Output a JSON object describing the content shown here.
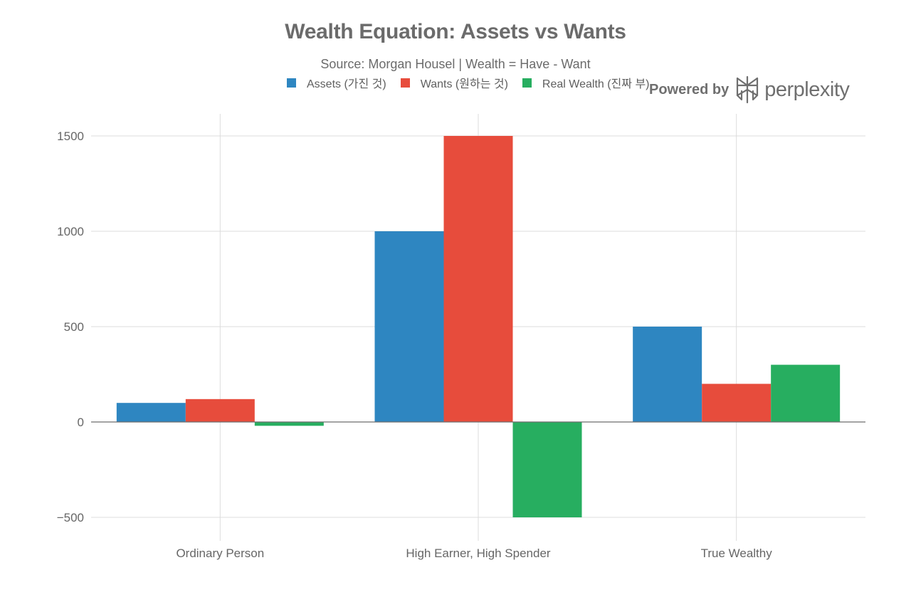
{
  "chart_data": {
    "type": "bar",
    "title": "Wealth Equation: Assets vs Wants",
    "subtitle": "Source: Morgan Housel | Wealth = Have - Want",
    "categories": [
      "Ordinary Person",
      "High Earner, High Spender",
      "True Wealthy"
    ],
    "series": [
      {
        "name": "Assets (가진 것)",
        "color": "#2e86c1",
        "values": [
          100,
          1000,
          500
        ]
      },
      {
        "name": "Wants (원하는 것)",
        "color": "#e74c3c",
        "values": [
          120,
          1500,
          200
        ]
      },
      {
        "name": "Real Wealth (진짜 부)",
        "color": "#27ae60",
        "values": [
          -20,
          -500,
          300
        ]
      }
    ],
    "xlabel": "",
    "ylabel": "",
    "ylim": [
      -610,
      1610
    ],
    "yticks": [
      -500,
      0,
      500,
      1000,
      1500
    ],
    "ytick_labels": [
      "−500",
      "0",
      "500",
      "1000",
      "1500"
    ],
    "grid": true,
    "legend_position": "top-center"
  },
  "branding": {
    "powered_by": "Powered by",
    "brand_name": "perplexity",
    "logo_icon": "perplexity-logo-icon"
  }
}
